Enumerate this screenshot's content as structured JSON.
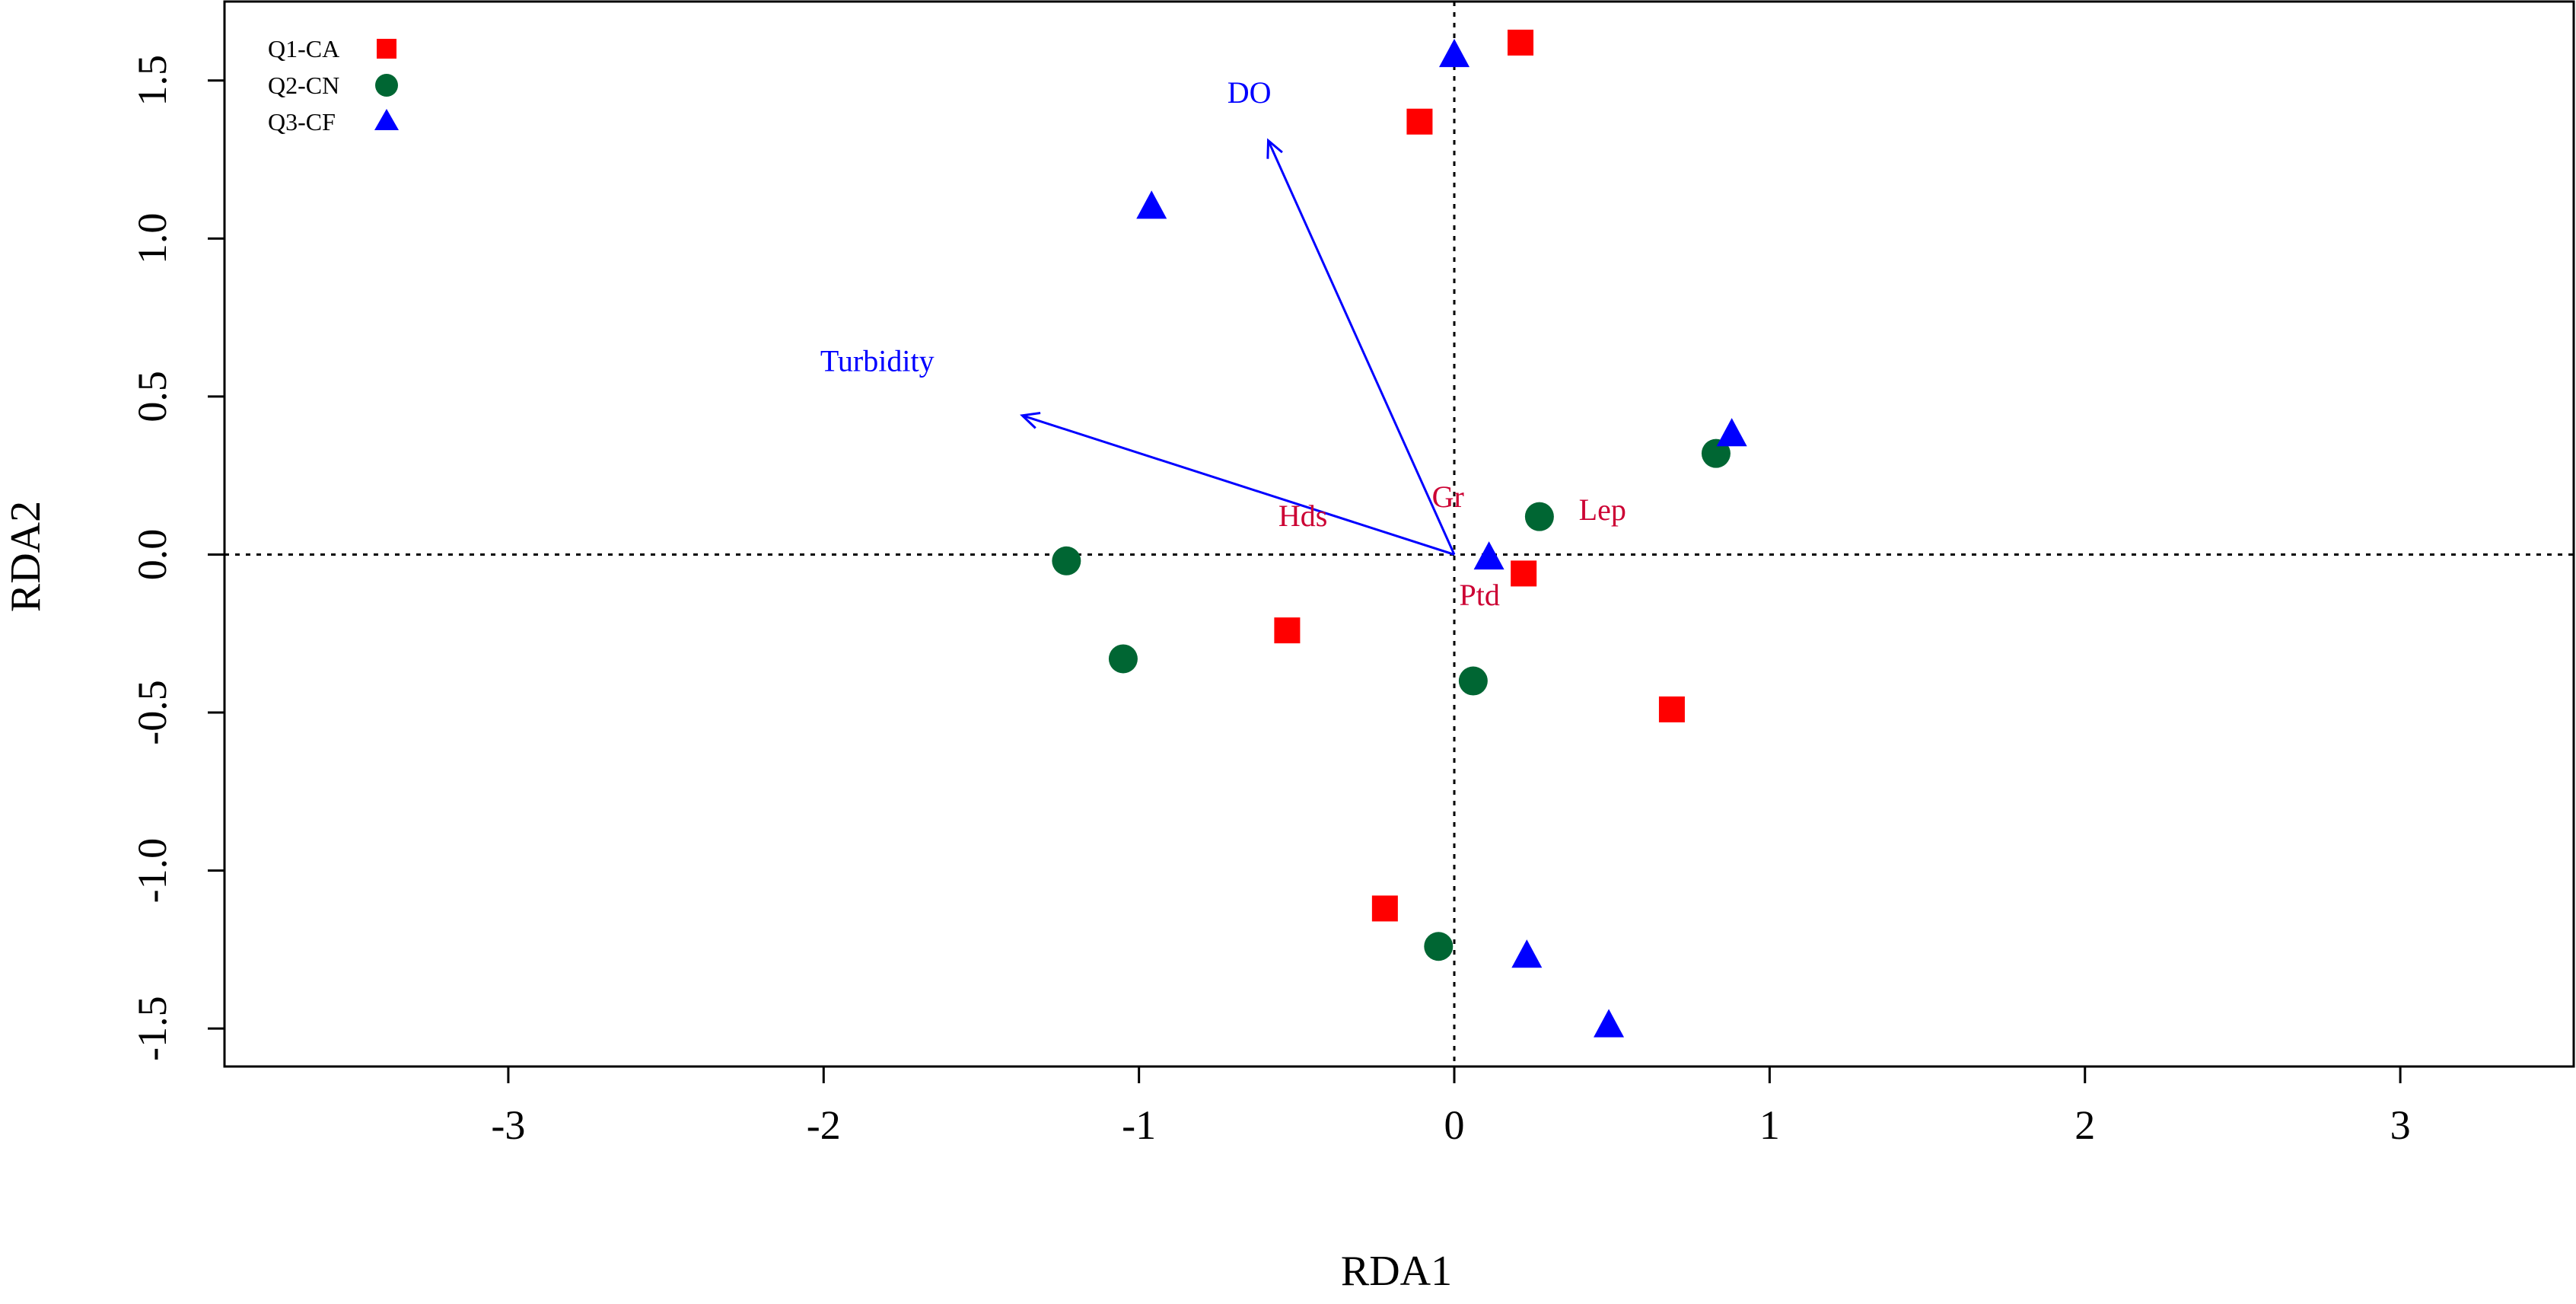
{
  "chart_data": {
    "type": "scatter",
    "title": "",
    "xlabel": "RDA1",
    "ylabel": "RDA2",
    "xlim": [
      -3.9,
      3.55
    ],
    "ylim": [
      -1.62,
      1.75
    ],
    "x_ticks": [
      -3,
      -2,
      -1,
      0,
      1,
      2,
      3
    ],
    "x_tick_labels": [
      "-3",
      "-2",
      "-1",
      "0",
      "1",
      "2",
      "3"
    ],
    "y_ticks": [
      -1.5,
      -1.0,
      -0.5,
      0.0,
      0.5,
      1.0,
      1.5
    ],
    "y_tick_labels": [
      "-1.5",
      "-1.0",
      "-0.5",
      "0.0",
      "0.5",
      "1.0",
      "1.5"
    ],
    "grid": false,
    "reference_lines": {
      "x": 0,
      "y": 0,
      "style": "dotted"
    },
    "legend_position": "top-left",
    "series": [
      {
        "name": "Q1-CA",
        "marker": "square",
        "color": "#ff0000",
        "points": [
          {
            "x": 0.21,
            "y": 1.62
          },
          {
            "x": -0.11,
            "y": 1.37
          },
          {
            "x": 0.22,
            "y": -0.06
          },
          {
            "x": -0.53,
            "y": -0.24
          },
          {
            "x": 0.69,
            "y": -0.49
          },
          {
            "x": -0.22,
            "y": -1.12
          }
        ]
      },
      {
        "name": "Q2-CN",
        "marker": "circle",
        "color": "#006633",
        "points": [
          {
            "x": 0.83,
            "y": 0.32
          },
          {
            "x": 0.27,
            "y": 0.12
          },
          {
            "x": -1.23,
            "y": -0.02
          },
          {
            "x": -1.05,
            "y": -0.33
          },
          {
            "x": 0.06,
            "y": -0.4
          },
          {
            "x": -0.05,
            "y": -1.24
          }
        ]
      },
      {
        "name": "Q3-CF",
        "marker": "triangle",
        "color": "#0000ff",
        "points": [
          {
            "x": 0.0,
            "y": 1.58
          },
          {
            "x": -0.96,
            "y": 1.1
          },
          {
            "x": 0.88,
            "y": 0.38
          },
          {
            "x": 0.11,
            "y": -0.01
          },
          {
            "x": 0.23,
            "y": -1.27
          },
          {
            "x": 0.49,
            "y": -1.49
          }
        ]
      }
    ],
    "environmental_vectors": {
      "color": "#0000ff",
      "items": [
        {
          "name": "DO",
          "x": -0.59,
          "y": 1.31,
          "label_x": -0.65,
          "label_y": 1.43
        },
        {
          "name": "Turbidity",
          "x": -1.37,
          "y": 0.44,
          "label_x": -1.83,
          "label_y": 0.58
        }
      ]
    },
    "species_labels": {
      "color": "#cc0033",
      "items": [
        {
          "name": "Gr",
          "x": -0.02,
          "y": 0.15
        },
        {
          "name": "Lep",
          "x": 0.47,
          "y": 0.11
        },
        {
          "name": "Hds",
          "x": -0.48,
          "y": 0.09
        },
        {
          "name": "Ptd",
          "x": 0.08,
          "y": -0.16
        }
      ]
    }
  }
}
